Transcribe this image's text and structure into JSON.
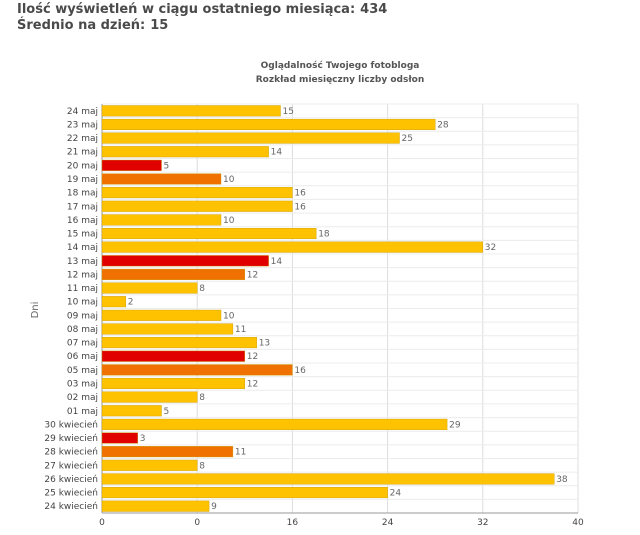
{
  "summary": {
    "views_label": "Ilość wyświetleń w ciągu ostatniego miesiąca:",
    "views_value": "434",
    "avg_label": "Średnio na dzień:",
    "avg_value": "15"
  },
  "chart_data": {
    "type": "bar",
    "orientation": "horizontal",
    "title": "Oglądalność Twojego fotobloga",
    "subtitle": "Rozkład miesięczny liczby odsłon",
    "xlabel": "",
    "ylabel": "Dni",
    "xlim": [
      0,
      40
    ],
    "x_ticks": [
      "0",
      "0",
      "16",
      "24",
      "32",
      "40"
    ],
    "grid": true,
    "categories": [
      "24 maj",
      "23 maj",
      "22 maj",
      "21 maj",
      "20 maj",
      "19 maj",
      "18 maj",
      "17 maj",
      "16 maj",
      "15 maj",
      "14 maj",
      "13 maj",
      "12 maj",
      "11 maj",
      "10 maj",
      "09 maj",
      "08 maj",
      "07 maj",
      "06 maj",
      "05 maj",
      "03 maj",
      "02 maj",
      "01 maj",
      "30 kwiecień",
      "29 kwiecień",
      "28 kwiecień",
      "27 kwiecień",
      "26 kwiecień",
      "25 kwiecień",
      "24 kwiecień"
    ],
    "values": [
      15,
      28,
      25,
      14,
      5,
      10,
      16,
      16,
      10,
      18,
      32,
      14,
      12,
      8,
      2,
      10,
      11,
      13,
      12,
      16,
      12,
      8,
      5,
      29,
      3,
      11,
      8,
      38,
      24,
      9
    ],
    "bar_colors": [
      "#ffc200",
      "#ffc200",
      "#ffc200",
      "#ffc200",
      "#e00000",
      "#f07000",
      "#ffc200",
      "#ffc200",
      "#ffc200",
      "#ffc200",
      "#ffc200",
      "#e00000",
      "#f07000",
      "#ffc200",
      "#ffc200",
      "#ffc200",
      "#ffc200",
      "#ffc200",
      "#e00000",
      "#f07000",
      "#ffc200",
      "#ffc200",
      "#ffc200",
      "#ffc200",
      "#e00000",
      "#f07000",
      "#ffc200",
      "#ffc200",
      "#ffc200",
      "#ffc200"
    ]
  }
}
